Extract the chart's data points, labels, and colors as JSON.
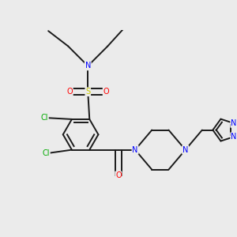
{
  "background_color": "#ebebeb",
  "bond_color": "#1a1a1a",
  "bond_width": 1.4,
  "atom_colors": {
    "C": "#1a1a1a",
    "N": "#0000ff",
    "O": "#ff0000",
    "S": "#cccc00",
    "Cl": "#00aa00"
  },
  "font_size": 7.0,
  "fig_size": [
    3.0,
    3.0
  ],
  "dpi": 100
}
